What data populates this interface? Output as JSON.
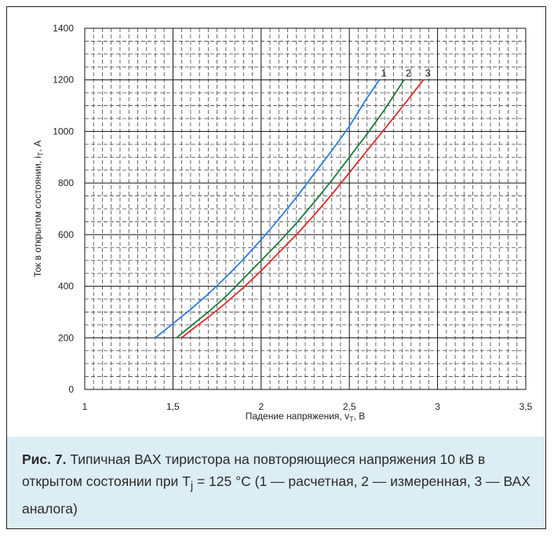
{
  "chart_data": {
    "type": "line",
    "xlabel_main": "Падение напряжения, v",
    "xlabel_sub": "T",
    "xlabel_tail": ", В",
    "ylabel_main": "Ток в открытом состоянии, i",
    "ylabel_sub": "T",
    "ylabel_tail": ", А",
    "xlim": [
      1,
      3.5
    ],
    "ylim": [
      0,
      1400
    ],
    "x_ticks": [
      1,
      1.5,
      2,
      2.5,
      3,
      3.5
    ],
    "x_tick_labels": [
      "1",
      "1,5",
      "2",
      "2,5",
      "3",
      "3,5"
    ],
    "y_ticks": [
      0,
      200,
      400,
      600,
      800,
      1000,
      1200,
      1400
    ],
    "y_tick_labels": [
      "0",
      "200",
      "400",
      "600",
      "800",
      "1000",
      "1200",
      "1400"
    ],
    "grid": true,
    "series": [
      {
        "name": "1",
        "color": "#2b7be4",
        "x": [
          1.4,
          1.5,
          1.6,
          1.7,
          1.8,
          1.9,
          2.0,
          2.1,
          2.2,
          2.3,
          2.4,
          2.5,
          2.6,
          2.67
        ],
        "y": [
          200,
          255,
          310,
          370,
          435,
          505,
          580,
          660,
          745,
          835,
          925,
          1020,
          1130,
          1200
        ]
      },
      {
        "name": "2",
        "color": "#1e7a3a",
        "x": [
          1.52,
          1.6,
          1.7,
          1.8,
          1.9,
          2.0,
          2.1,
          2.2,
          2.3,
          2.4,
          2.5,
          2.6,
          2.7,
          2.81
        ],
        "y": [
          200,
          245,
          300,
          360,
          430,
          500,
          570,
          645,
          725,
          810,
          900,
          990,
          1085,
          1200
        ]
      },
      {
        "name": "3",
        "color": "#e02a2a",
        "x": [
          1.55,
          1.6,
          1.7,
          1.8,
          1.9,
          2.0,
          2.1,
          2.2,
          2.3,
          2.4,
          2.5,
          2.6,
          2.7,
          2.8,
          2.92
        ],
        "y": [
          200,
          228,
          280,
          335,
          395,
          460,
          530,
          600,
          675,
          755,
          840,
          925,
          1010,
          1095,
          1200
        ]
      }
    ]
  },
  "caption": {
    "label": "Рис. 7.",
    "text": " Типичная ВАХ тиристора на повторяющиеся напряжения 10 кВ в открытом состоянии при T",
    "sub": "j",
    "text2": " = 125 °C (1 — расчетная, 2 — измеренная, 3 — ВАХ аналога)"
  }
}
